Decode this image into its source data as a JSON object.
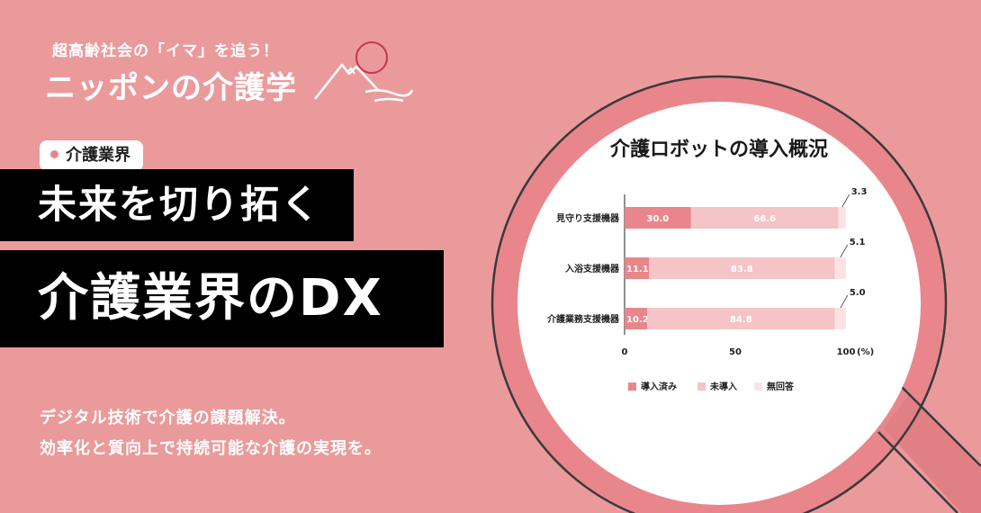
{
  "brand": {
    "tagline": "超高齢社会の「イマ」を追う！",
    "title": "ニッポンの介護学"
  },
  "category": {
    "label": "介護業界"
  },
  "headline": {
    "line1": "未来を切り拓く",
    "line2": "介護業界のDX"
  },
  "description": {
    "line1": "デジタル技術で介護の課題解決。",
    "line2": "効率化と質向上で持続可能な介護の実現を。"
  },
  "colors": {
    "background": "#eb9a9c",
    "introduced": "#e8868c",
    "not_introduced": "#f5c4c6",
    "no_answer": "#fbe3e4"
  },
  "chart_data": {
    "type": "bar",
    "orientation": "horizontal",
    "stacked": true,
    "title": "介護ロボットの導入概況",
    "categories": [
      "見守り支援機器",
      "入浴支援機器",
      "介護業務支援機器"
    ],
    "series": [
      {
        "name": "導入済み",
        "values": [
          30.0,
          11.1,
          10.2
        ]
      },
      {
        "name": "未導入",
        "values": [
          66.6,
          83.8,
          84.8
        ]
      },
      {
        "name": "無回答",
        "values": [
          3.3,
          5.1,
          5.0
        ]
      }
    ],
    "xlim": [
      0,
      100
    ],
    "xticks": [
      "0",
      "50",
      "100"
    ],
    "xunit": "(%)",
    "grid": false,
    "legend": "bottom"
  }
}
